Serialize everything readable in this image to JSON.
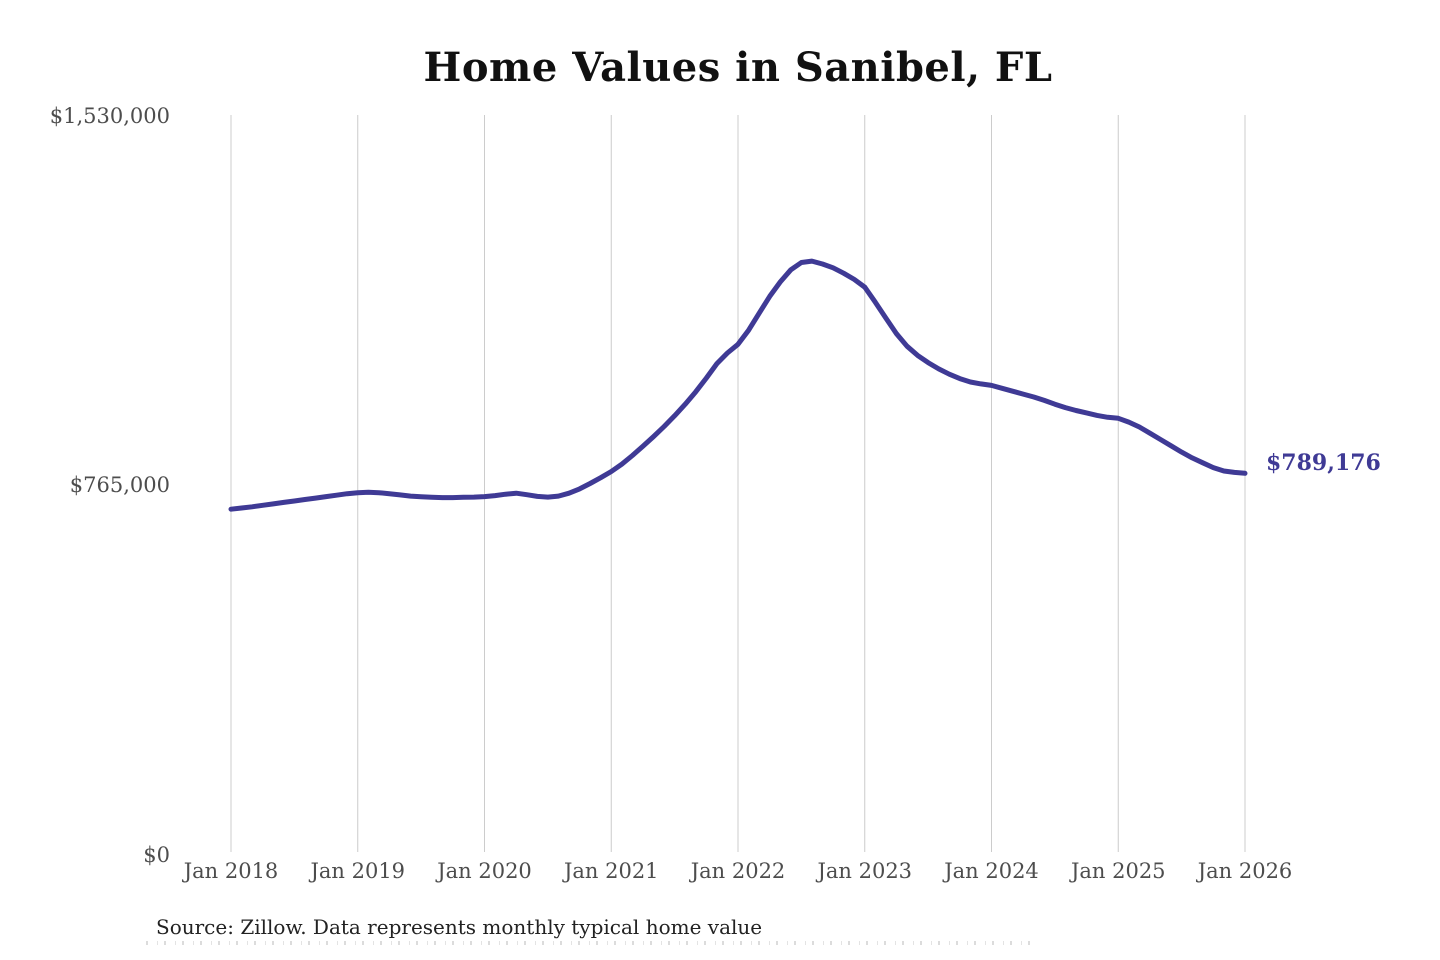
{
  "page": {
    "source_note": "Source: Zillow. Data represents monthly typical home value"
  },
  "chart_data": {
    "type": "line",
    "title": "Home Values in Sanibel, FL",
    "xlabel": "",
    "ylabel": "",
    "ylim": [
      0,
      1530000
    ],
    "y_tick_labels": [
      "$0",
      "$765,000",
      "$1,530,000"
    ],
    "x_tick_labels": [
      "Jan 2018",
      "Jan 2019",
      "Jan 2020",
      "Jan 2021",
      "Jan 2022",
      "Jan 2023",
      "Jan 2024",
      "Jan 2025",
      "Jan 2026"
    ],
    "grid": "vertical-only",
    "legend": "none",
    "line_color": "#3f3a95",
    "gridline_color": "#cccccc",
    "end_label": "$789,176",
    "end_value": 789176,
    "series": [
      {
        "name": "Monthly typical home value",
        "x_start": "Jan 2018",
        "x_end": "Jan 2026",
        "x_interval": "monthly",
        "values": [
          715000,
          717500,
          720000,
          723000,
          726000,
          729000,
          732000,
          735000,
          738000,
          741000,
          744000,
          747000,
          749000,
          750000,
          749000,
          747000,
          744500,
          742000,
          740500,
          739500,
          739000,
          739000,
          739500,
          740000,
          741000,
          743000,
          746000,
          748000,
          745000,
          741500,
          740000,
          742000,
          748000,
          757000,
          768000,
          780000,
          793000,
          808000,
          826000,
          845000,
          865000,
          886000,
          908000,
          932000,
          958000,
          986000,
          1016000,
          1038000,
          1056000,
          1085000,
          1120000,
          1155000,
          1185000,
          1210000,
          1225000,
          1228000,
          1222000,
          1214000,
          1203000,
          1190000,
          1174000,
          1143000,
          1110000,
          1078000,
          1052000,
          1033000,
          1018000,
          1005000,
          994000,
          985000,
          978000,
          974000,
          971000,
          965000,
          959000,
          953000,
          947000,
          940000,
          932000,
          925000,
          919000,
          914000,
          909000,
          905000,
          903000,
          895000,
          885000,
          872000,
          859000,
          846000,
          833000,
          821000,
          811000,
          801000,
          794000,
          791000,
          789176
        ]
      }
    ]
  }
}
